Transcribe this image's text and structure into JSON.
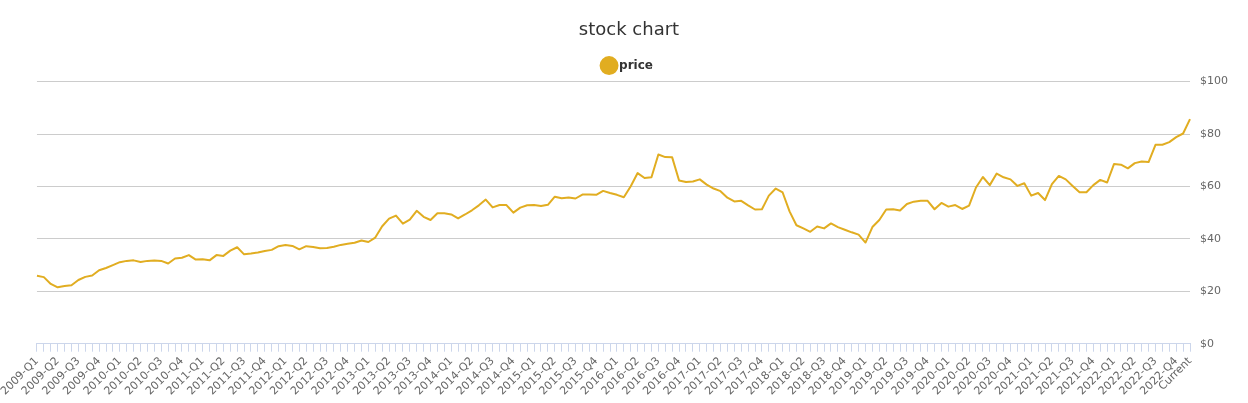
{
  "chart_data": {
    "type": "line",
    "title": "stock chart",
    "categories": [
      "2009-Q1",
      null,
      null,
      "2009-Q2",
      null,
      null,
      "2009-Q3",
      null,
      null,
      "2009-Q4",
      null,
      null,
      "2010-Q1",
      null,
      null,
      "2010-Q2",
      null,
      null,
      "2010-Q3",
      null,
      null,
      "2010-Q4",
      null,
      null,
      "2011-Q1",
      null,
      null,
      "2011-Q2",
      null,
      null,
      "2011-Q3",
      null,
      null,
      "2011-Q4",
      null,
      null,
      "2012-Q1",
      null,
      null,
      "2012-Q2",
      null,
      null,
      "2012-Q3",
      null,
      null,
      "2012-Q4",
      null,
      null,
      "2013-Q1",
      null,
      null,
      "2013-Q2",
      null,
      null,
      "2013-Q3",
      null,
      null,
      "2013-Q4",
      null,
      null,
      "2014-Q1",
      null,
      null,
      "2014-Q2",
      null,
      null,
      "2014-Q3",
      null,
      null,
      "2014-Q4",
      null,
      null,
      "2015-Q1",
      null,
      null,
      "2015-Q2",
      null,
      null,
      "2015-Q3",
      null,
      null,
      "2015-Q4",
      null,
      null,
      "2016-Q1",
      null,
      null,
      "2016-Q2",
      null,
      null,
      "2016-Q3",
      null,
      null,
      "2016-Q4",
      null,
      null,
      "2017-Q1",
      null,
      null,
      "2017-Q2",
      null,
      null,
      "2017-Q3",
      null,
      null,
      "2017-Q4",
      null,
      null,
      "2018-Q1",
      null,
      null,
      "2018-Q2",
      null,
      null,
      "2018-Q3",
      null,
      null,
      "2018-Q4",
      null,
      null,
      "2019-Q1",
      null,
      null,
      "2019-Q2",
      null,
      null,
      "2019-Q3",
      null,
      null,
      "2019-Q4",
      null,
      null,
      "2020-Q1",
      null,
      null,
      "2020-Q2",
      null,
      null,
      "2020-Q3",
      null,
      null,
      "2020-Q4",
      null,
      null,
      "2021-Q1",
      null,
      null,
      "2021-Q2",
      null,
      null,
      "2021-Q3",
      null,
      null,
      "2021-Q4",
      null,
      null,
      "2022-Q1",
      null,
      null,
      "2022-Q2",
      null,
      null,
      "2022-Q3",
      null,
      null,
      "2022-Q4",
      null,
      "Current"
    ],
    "series": [
      {
        "name": "price",
        "color": "#e1ad21",
        "values": [
          25.9,
          25.4,
          22.8,
          21.5,
          22,
          22.3,
          24.3,
          25.5,
          26,
          28,
          28.9,
          30,
          31.1,
          31.6,
          31.8,
          31.2,
          31.6,
          31.7,
          31.6,
          30.6,
          32.5,
          32.8,
          33.8,
          32.1,
          32.2,
          31.8,
          33.8,
          33.5,
          35.5,
          36.8,
          34.1,
          34.4,
          34.8,
          35.4,
          35.8,
          37.2,
          37.7,
          37.3,
          36,
          37.2,
          36.9,
          36.4,
          36.5,
          37,
          37.7,
          38.1,
          38.5,
          39.4,
          38.8,
          40.5,
          44.8,
          47.7,
          48.9,
          45.8,
          47.3,
          50.7,
          48.4,
          47.2,
          49.8,
          49.8,
          49.3,
          47.8,
          49.3,
          50.9,
          52.8,
          55,
          52,
          52.9,
          52.9,
          50,
          51.9,
          52.8,
          52.9,
          52.5,
          53,
          56.1,
          55.5,
          55.8,
          55.4,
          56.9,
          56.9,
          56.8,
          58.3,
          57.5,
          56.8,
          55.9,
          60.1,
          65.1,
          63.2,
          63.5,
          72.2,
          71.2,
          71.1,
          62.3,
          61.7,
          61.9,
          62.7,
          60.7,
          59.2,
          58.2,
          55.7,
          54.3,
          54.5,
          52.8,
          51.2,
          51.3,
          56.5,
          59.2,
          57.7,
          50.5,
          45.2,
          44,
          42.7,
          44.7,
          44,
          45.9,
          44.5,
          43.5,
          42.5,
          41.6,
          38.6,
          44.5,
          47.2,
          51.2,
          51.3,
          50.8,
          53.3,
          54.2,
          54.5,
          54.5,
          51.3,
          53.7,
          52.3,
          52.9,
          51.4,
          52.7,
          59.6,
          63.6,
          60.5,
          64.9,
          63.5,
          62.7,
          60.2,
          61.2,
          56.5,
          57.5,
          54.8,
          60.9,
          64,
          62.7,
          60.2,
          57.8,
          57.8,
          60.5,
          62.5,
          61.5,
          68.6,
          68.3,
          66.9,
          68.9,
          69.5,
          69.3,
          75.9,
          75.9,
          76.9,
          78.8,
          80.2,
          85.7
        ]
      }
    ],
    "ylim": [
      0,
      100
    ],
    "yticks": [
      {
        "value": 0,
        "label": "$0"
      },
      {
        "value": 20,
        "label": "$20"
      },
      {
        "value": 40,
        "label": "$40"
      },
      {
        "value": 60,
        "label": "$60"
      },
      {
        "value": 80,
        "label": "$80"
      },
      {
        "value": 100,
        "label": "$100"
      }
    ],
    "grid": "y",
    "legend": "top",
    "marker": "none",
    "line_style": "solid"
  }
}
